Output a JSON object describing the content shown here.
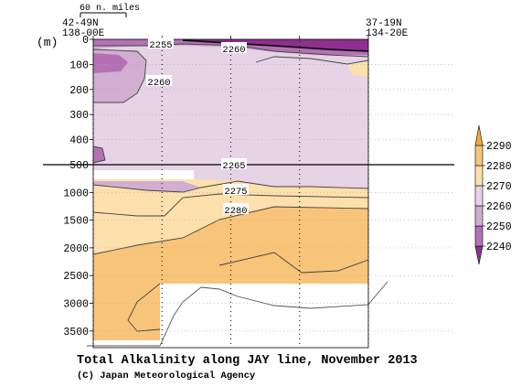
{
  "chart_data": {
    "type": "heatmap",
    "title": "Total Alkalinity along JAY line, November 2013",
    "credit": "(C) Japan Meteorological Agency",
    "depth_unit": "(m)",
    "scale_label": "60 n. miles",
    "station_left": {
      "lat": "42-49N",
      "lon": "138-00E"
    },
    "station_right": {
      "lat": "37-19N",
      "lon": "134-20E"
    },
    "y_ticks_upper": [
      0,
      100,
      200,
      300,
      400,
      500
    ],
    "y_ticks_lower": [
      1000,
      1500,
      2000,
      2500,
      3000,
      3500
    ],
    "ylim_upper": [
      0,
      500
    ],
    "ylim_lower": [
      500,
      3800
    ],
    "colorbar": {
      "levels": [
        2240,
        2250,
        2260,
        2270,
        2280,
        2290
      ],
      "colors": [
        "#8f2f8f",
        "#b471b4",
        "#d1aed2",
        "#e6d3e6",
        "#fde0ac",
        "#f8c479",
        "#f4a840"
      ]
    },
    "contour_labels": [
      "2255",
      "2260",
      "2260",
      "2265",
      "2275",
      "2280"
    ],
    "station_count": 5,
    "grid": "dotted horizontal"
  }
}
